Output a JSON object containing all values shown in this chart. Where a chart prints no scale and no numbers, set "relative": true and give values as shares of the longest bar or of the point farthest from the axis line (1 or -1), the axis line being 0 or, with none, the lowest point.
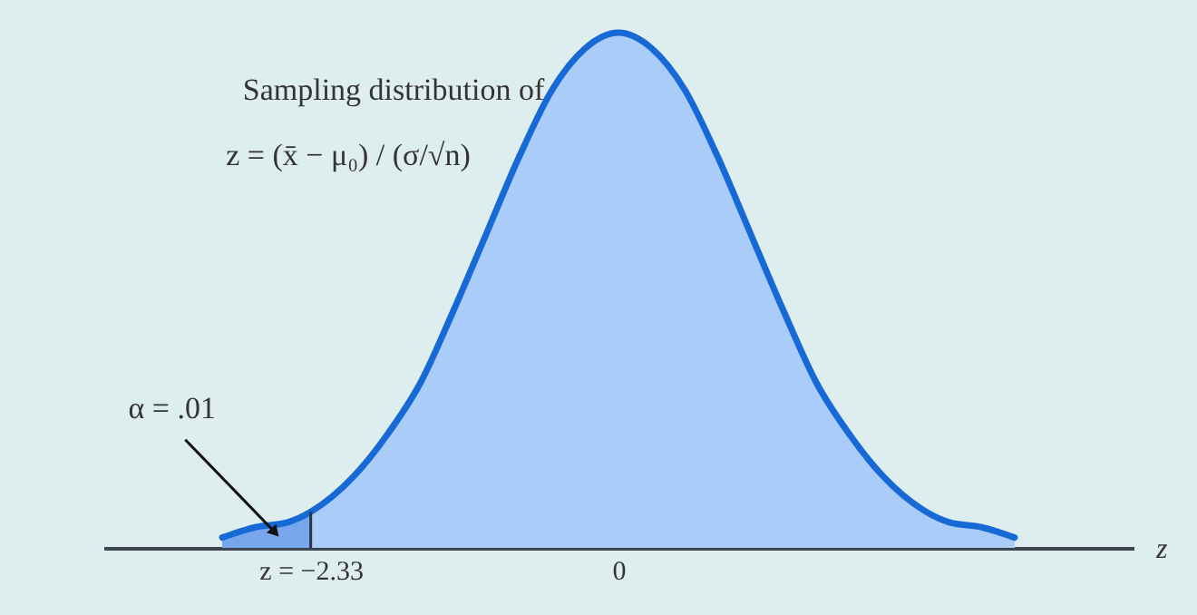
{
  "chart_data": {
    "type": "area",
    "relative": true,
    "xlabel": "z",
    "xlim": [
      -3.9,
      3.9
    ],
    "xticks": [
      {
        "value": -2.33,
        "label": "z = −2.33"
      },
      0
    ],
    "annotations": [
      "Sampling distribution of",
      "z = (x̄ − μ₀) / (σ/√n)",
      {
        "text": "α = .01",
        "x": -2.6,
        "y": 0.03
      }
    ],
    "series": [
      {
        "color": "#aaccf8",
        "x": [
          -3,
          -2.75,
          -2.5,
          -2.33,
          -2,
          -1.75,
          -1.5,
          -1.25,
          -1,
          -0.75,
          -0.5,
          -0.25,
          0,
          0.25,
          0.5,
          0.75,
          1,
          1.25,
          1.5,
          1.75,
          2,
          2.33,
          2.5,
          2.75,
          3
        ],
        "values": [
          0.02,
          0.04,
          0.05,
          0.07,
          0.14,
          0.22,
          0.32,
          0.46,
          0.61,
          0.76,
          0.89,
          0.97,
          1,
          0.97,
          0.89,
          0.76,
          0.61,
          0.46,
          0.32,
          0.22,
          0.14,
          0.07,
          0.05,
          0.04,
          0.02
        ]
      },
      {
        "color": "#78a6ec",
        "x": [
          -3,
          -2.75,
          -2.5,
          -2.33
        ],
        "values": [
          0.02,
          0.04,
          0.05,
          0.07
        ]
      }
    ]
  }
}
